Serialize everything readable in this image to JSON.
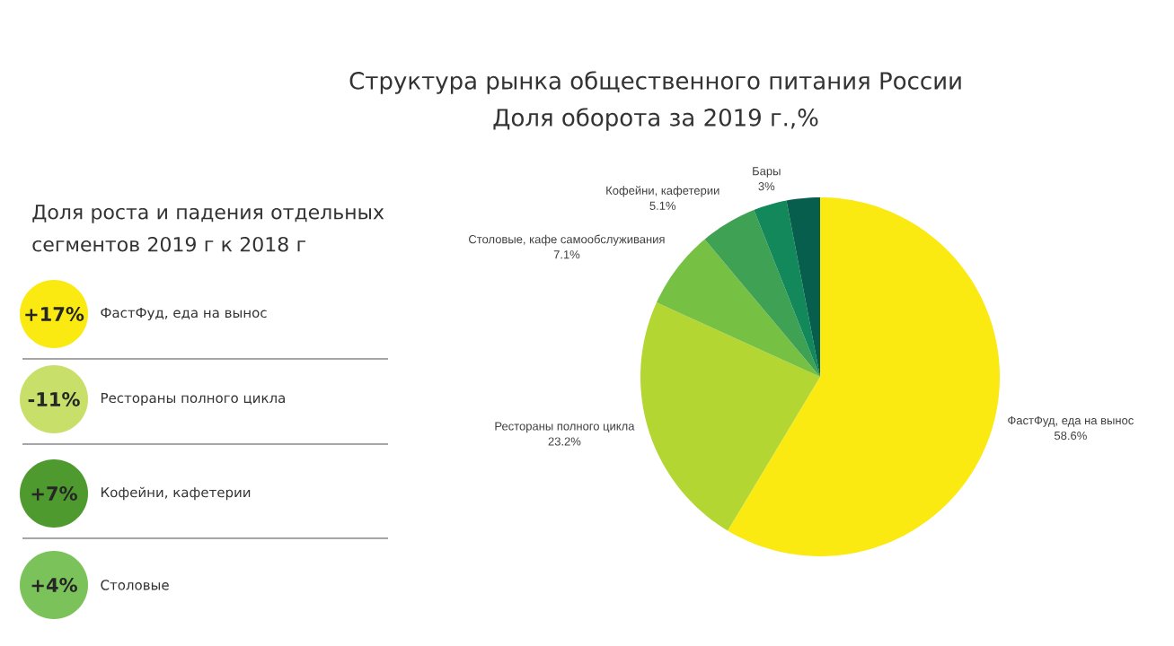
{
  "chart_data": [
    {
      "type": "pie",
      "title": "Структура рынка общественного питания России",
      "subtitle": "Доля оборота за 2019 г.,%",
      "categories": [
        "ФастФуд, еда на вынос",
        "Рестораны полного цикла",
        "Столовые, кафе самообслуживания",
        "Кофейни, кафетерии",
        "Бары",
        null
      ],
      "values": [
        58.6,
        23.2,
        7.1,
        5.1,
        3,
        3
      ],
      "value_labels": [
        "58.6%",
        "23.2%",
        "7.1%",
        "5.1%",
        "3%",
        null
      ],
      "colors": [
        "#fbe912",
        "#b3d632",
        "#76c043",
        "#3ea153",
        "#12885b",
        "#075e4c"
      ]
    },
    {
      "type": "other",
      "title": "Доля роста и падения отдельных сегментов 2019 г к 2018 г",
      "categories": [
        "ФастФуд, еда на вынос",
        "Рестораны полного цикла",
        "Кофейни, кафетерии",
        "Столовые"
      ],
      "value_labels": [
        "+17%",
        "-11%",
        "+7%",
        "+4%"
      ],
      "colors": [
        "#fbe912",
        "#c8e06a",
        "#4e9a2e",
        "#7cc25a"
      ]
    }
  ]
}
